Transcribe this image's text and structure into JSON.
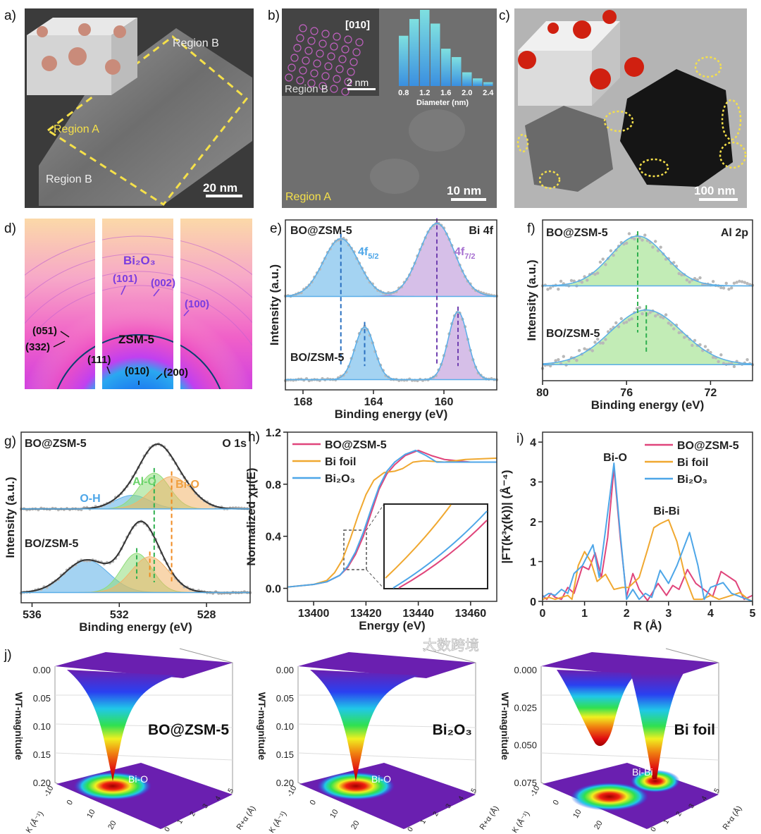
{
  "figure": {
    "a": {
      "label": "a)",
      "region_b_top": "Region B",
      "region_a": "Region A",
      "region_b_bottom": "Region B",
      "scale_bar": "20 nm"
    },
    "b": {
      "label": "b)",
      "zone_axis": "[010]",
      "inset_scale": "2 nm",
      "inset_region": "Region B",
      "region": "Region A",
      "scale_bar": "10 nm"
    },
    "c": {
      "label": "c)",
      "scale_bar": "100 nm"
    },
    "d": {
      "label": "d)",
      "phase_top": "Bi₂O₃",
      "phase_bottom": "ZSM-5",
      "planes": [
        "(101)",
        "(002)",
        "(100)",
        "(051)",
        "(332)",
        "(111)",
        "(010)",
        "(200)"
      ]
    },
    "j": {
      "label": "j)",
      "zlabel": "WT-magnitude",
      "klabel": "K (Å⁻¹)",
      "rlabel": "R+α (Å)",
      "k_ticks": [
        "-10",
        "0",
        "10",
        "20"
      ],
      "r_ticks": [
        "0",
        "1",
        "2",
        "3",
        "4",
        "5"
      ],
      "plots": [
        {
          "title": "BO@ZSM-5",
          "peak": "Bi-O",
          "z_ticks": [
            "0.00",
            "0.05",
            "0.10",
            "0.15",
            "0.20"
          ]
        },
        {
          "title": "Bi₂O₃",
          "peak": "Bi-O",
          "z_ticks": [
            "0.00",
            "0.05",
            "0.10",
            "0.15",
            "0.20"
          ]
        },
        {
          "title": "Bi foil",
          "peak": "Bi-Bi",
          "z_ticks": [
            "0.000",
            "0.025",
            "0.050",
            "0.075"
          ]
        }
      ]
    }
  },
  "watermark": "大数跨境",
  "colors": {
    "bo_zsm5": "#e0457b",
    "bi_foil": "#f0a830",
    "bi2o3": "#4da6e8",
    "fit_blue": "#5aaee8",
    "fit_purple": "#b58bd6",
    "fit_green": "#8fdc7a",
    "fit_orange": "#f2b46a",
    "annot_purple": "#7a3ce0",
    "dash_yellow": "#f5e04a"
  },
  "chart_data": [
    {
      "panel": "b-inset",
      "type": "bar",
      "categories": [
        0.8,
        1.0,
        1.2,
        1.4,
        1.6,
        1.8,
        2.0,
        2.2,
        2.4
      ],
      "values": [
        0.66,
        0.88,
        1.0,
        0.82,
        0.49,
        0.38,
        0.18,
        0.1,
        0.05
      ],
      "xtick_labels": [
        "0.8",
        "1.2",
        "1.6",
        "2.0",
        "2.4"
      ],
      "xlabel": "Diameter (nm)",
      "ylabel": ""
    },
    {
      "panel": "e",
      "type": "line",
      "label": "e)",
      "xlabel": "Binding energy (eV)",
      "ylabel": "Intensity (a.u.)",
      "xlim": [
        169,
        157
      ],
      "ylim": [
        0,
        10
      ],
      "xticks": [
        168,
        164,
        160
      ],
      "xtick_labels": [
        "168",
        "164",
        "160"
      ],
      "series": [
        {
          "name": "BO@ZSM-5",
          "baseline": 5.5,
          "components": [
            {
              "name": "4f5/2",
              "center": 165.85,
              "sigma": 1.0,
              "amp": 3.4,
              "color": "#5aaee8"
            },
            {
              "name": "4f7/2",
              "center": 160.4,
              "sigma": 1.0,
              "amp": 4.3,
              "color": "#b58bd6"
            }
          ]
        },
        {
          "name": "BO/ZSM-5",
          "baseline": 0.6,
          "components": [
            {
              "name": "4f5/2",
              "center": 164.5,
              "sigma": 0.55,
              "amp": 3.1,
              "color": "#5aaee8"
            },
            {
              "name": "4f7/2",
              "center": 159.2,
              "sigma": 0.55,
              "amp": 4.0,
              "color": "#b58bd6"
            }
          ]
        }
      ],
      "annotations": [
        {
          "text": "BO@ZSM-5"
        },
        {
          "text": "Bi 4f"
        },
        {
          "text": "4f",
          "sub": "5/2",
          "color": "#4da6e8"
        },
        {
          "text": "4f",
          "sub": "7/2",
          "color": "#a66fd0"
        },
        {
          "text": "BO/ZSM-5"
        }
      ]
    },
    {
      "panel": "f",
      "type": "line",
      "label": "f)",
      "xlabel": "Binding energy (eV)",
      "ylabel": "Intensity (a.u.)",
      "xlim": [
        80,
        70
      ],
      "ylim": [
        0,
        10
      ],
      "xticks": [
        80,
        76,
        72
      ],
      "xtick_labels": [
        "80",
        "76",
        "72"
      ],
      "series": [
        {
          "name": "BO@ZSM-5",
          "baseline": 5.9,
          "components": [
            {
              "name": "Al 2p",
              "center": 75.47,
              "sigma": 1.3,
              "amp": 3.1,
              "color": "#8fdc7a"
            }
          ]
        },
        {
          "name": "BO/ZSM-5",
          "baseline": 1.0,
          "components": [
            {
              "name": "Al 2p",
              "center": 75.06,
              "sigma": 1.7,
              "amp": 3.4,
              "color": "#8fdc7a"
            }
          ]
        }
      ],
      "annotations": [
        {
          "text": "BO@ZSM-5"
        },
        {
          "text": "Al 2p"
        },
        {
          "text": "BO/ZSM-5"
        }
      ]
    },
    {
      "panel": "g",
      "type": "line",
      "label": "g)",
      "xlabel": "Binding energy (eV)",
      "ylabel": "Intensity (a.u.)",
      "xlim": [
        536.5,
        526
      ],
      "ylim": [
        0,
        10
      ],
      "xticks": [
        536,
        532,
        528
      ],
      "xtick_labels": [
        "536",
        "532",
        "528"
      ],
      "series": [
        {
          "name": "BO@ZSM-5",
          "baseline": 5.5,
          "components": [
            {
              "name": "O-H",
              "center": 531.4,
              "sigma": 0.8,
              "amp": 0.8,
              "color": "#5aaee8"
            },
            {
              "name": "Al-O",
              "center": 530.4,
              "sigma": 0.7,
              "amp": 2.1,
              "color": "#8fdc7a"
            },
            {
              "name": "Bi-O",
              "center": 529.6,
              "sigma": 0.9,
              "amp": 1.9,
              "color": "#f2b46a"
            }
          ]
        },
        {
          "name": "BO/ZSM-5",
          "baseline": 0.6,
          "components": [
            {
              "name": "O-H",
              "center": 533.5,
              "sigma": 1.0,
              "amp": 1.9,
              "color": "#5aaee8"
            },
            {
              "name": "Al-O",
              "center": 531.2,
              "sigma": 0.7,
              "amp": 2.3,
              "color": "#8fdc7a"
            },
            {
              "name": "Bi-O",
              "center": 530.6,
              "sigma": 0.85,
              "amp": 2.1,
              "color": "#f2b46a"
            }
          ]
        }
      ],
      "annotations": [
        {
          "text": "BO@ZSM-5"
        },
        {
          "text": "O 1s"
        },
        {
          "text": "Al-O",
          "color": "#6bd36b"
        },
        {
          "text": "Bi-O",
          "color": "#f0a040"
        },
        {
          "text": "O-H",
          "color": "#4da6e8"
        },
        {
          "text": "BO/ZSM-5"
        }
      ]
    },
    {
      "panel": "h",
      "type": "line",
      "label": "h)",
      "xlabel": "Energy (eV)",
      "ylabel": "Normalized χμ(E)",
      "xlim": [
        13390,
        13470
      ],
      "ylim": [
        -0.1,
        1.2
      ],
      "xticks": [
        13400,
        13420,
        13440,
        13460
      ],
      "xtick_labels": [
        "13400",
        "13420",
        "13440",
        "13460"
      ],
      "yticks": [
        0.0,
        0.4,
        0.8,
        1.2
      ],
      "ytick_labels": [
        "0.0",
        "0.4",
        "0.8",
        "1.2"
      ],
      "legend": "top-left",
      "series": [
        {
          "name": "BO@ZSM-5",
          "color": "#e0457b",
          "x": [
            13390,
            13400,
            13405,
            13410,
            13413,
            13416,
            13419,
            13422,
            13425,
            13428,
            13431,
            13435,
            13440,
            13445,
            13450,
            13460,
            13470
          ],
          "y": [
            0.01,
            0.03,
            0.05,
            0.1,
            0.16,
            0.26,
            0.4,
            0.58,
            0.76,
            0.88,
            0.95,
            1.02,
            1.06,
            1.02,
            0.99,
            0.97,
            0.97
          ]
        },
        {
          "name": "Bi foil",
          "color": "#f0a830",
          "x": [
            13390,
            13400,
            13405,
            13408,
            13411,
            13414,
            13417,
            13420,
            13423,
            13427,
            13431,
            13434,
            13438,
            13442,
            13450,
            13458,
            13470
          ],
          "y": [
            0.01,
            0.03,
            0.06,
            0.12,
            0.22,
            0.38,
            0.56,
            0.72,
            0.83,
            0.89,
            0.9,
            0.92,
            0.97,
            0.98,
            0.97,
            0.99,
            1.0
          ]
        },
        {
          "name": "Bi₂O₃",
          "color": "#4da6e8",
          "x": [
            13390,
            13400,
            13405,
            13410,
            13413,
            13416,
            13419,
            13422,
            13425,
            13428,
            13431,
            13435,
            13439,
            13443,
            13447,
            13460,
            13470
          ],
          "y": [
            0.01,
            0.03,
            0.05,
            0.1,
            0.17,
            0.28,
            0.43,
            0.61,
            0.78,
            0.9,
            0.97,
            1.03,
            1.06,
            1.02,
            0.97,
            0.97,
            0.97
          ]
        }
      ]
    },
    {
      "panel": "i",
      "type": "line",
      "label": "i)",
      "xlabel": "R (Å)",
      "ylabel": "|FT(k³χ(k))| (Å⁻⁴)",
      "xlim": [
        0,
        5
      ],
      "ylim": [
        0,
        4.25
      ],
      "xticks": [
        0,
        1,
        2,
        3,
        4,
        5
      ],
      "xtick_labels": [
        "0",
        "1",
        "2",
        "3",
        "4",
        "5"
      ],
      "yticks": [
        0,
        1,
        2,
        3,
        4
      ],
      "ytick_labels": [
        "0",
        "1",
        "2",
        "3",
        "4"
      ],
      "legend": "top-right",
      "series": [
        {
          "name": "BO@ZSM-5",
          "color": "#e0457b",
          "x": [
            0,
            0.1,
            0.2,
            0.3,
            0.45,
            0.6,
            0.75,
            0.95,
            1.1,
            1.25,
            1.4,
            1.55,
            1.7,
            1.85,
            2.0,
            2.15,
            2.3,
            2.5,
            2.75,
            2.95,
            3.1,
            3.25,
            3.45,
            3.65,
            3.9,
            4.05,
            4.25,
            4.6,
            4.8,
            5.0
          ],
          "y": [
            0.15,
            0.05,
            0.2,
            0.1,
            0.05,
            0.35,
            0.2,
            0.88,
            0.8,
            1.22,
            0.6,
            1.6,
            3.35,
            1.6,
            0.12,
            0.7,
            0.3,
            0.02,
            0.45,
            0.15,
            0.4,
            0.3,
            0.8,
            0.45,
            0.25,
            0.12,
            0.75,
            0.5,
            0.05,
            0.15
          ]
        },
        {
          "name": "Bi foil",
          "color": "#f0a830",
          "x": [
            0,
            0.15,
            0.3,
            0.45,
            0.6,
            0.7,
            0.85,
            1.0,
            1.15,
            1.3,
            1.5,
            1.7,
            1.9,
            2.05,
            2.3,
            2.5,
            2.65,
            2.8,
            3.0,
            3.2,
            3.4,
            3.6,
            3.8,
            4.0,
            4.2,
            4.5,
            4.7,
            4.9,
            5.0
          ],
          "y": [
            0.05,
            0.1,
            0.05,
            0.1,
            0.15,
            0.05,
            0.9,
            1.25,
            1.0,
            0.5,
            0.68,
            0.3,
            0.35,
            0.35,
            0.6,
            1.3,
            1.85,
            1.95,
            2.05,
            1.5,
            0.6,
            0.05,
            0.05,
            0.15,
            0.05,
            0.15,
            0.22,
            0.05,
            0.0
          ]
        },
        {
          "name": "Bi₂O₃",
          "color": "#4da6e8",
          "x": [
            0,
            0.15,
            0.3,
            0.45,
            0.6,
            0.75,
            0.95,
            1.2,
            1.35,
            1.5,
            1.7,
            1.85,
            2.0,
            2.15,
            2.3,
            2.45,
            2.6,
            2.8,
            3.0,
            3.2,
            3.5,
            3.7,
            3.85,
            4.0,
            4.3,
            4.5,
            4.7,
            5.0
          ],
          "y": [
            0.1,
            0.2,
            0.15,
            0.3,
            0.2,
            0.7,
            0.9,
            1.42,
            0.6,
            1.8,
            3.47,
            1.7,
            0.05,
            0.3,
            0.05,
            0.2,
            0.1,
            0.78,
            0.45,
            0.9,
            1.73,
            0.9,
            0.05,
            0.35,
            0.47,
            0.2,
            0.12,
            0.0
          ]
        }
      ],
      "annotations": [
        {
          "text": "Bi-O"
        },
        {
          "text": "Bi-Bi"
        }
      ]
    }
  ]
}
